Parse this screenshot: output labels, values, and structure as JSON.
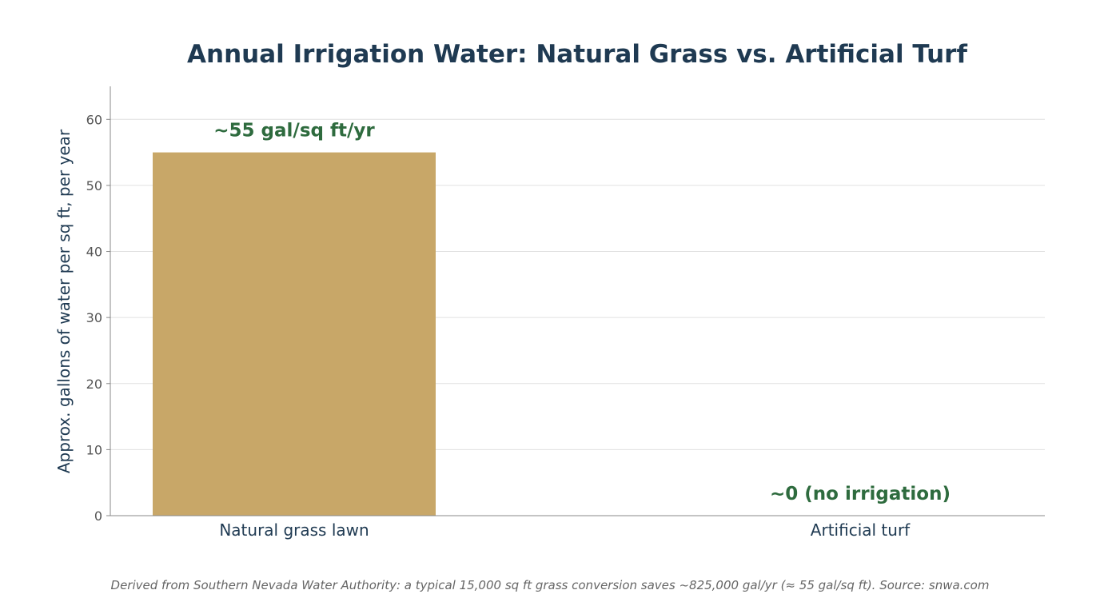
{
  "chart_data": {
    "type": "bar",
    "title": "Annual Irrigation Water: Natural Grass vs. Artificial Turf",
    "xlabel": "",
    "ylabel": "Approx. gallons of water per sq ft, per year",
    "ylim": [
      0,
      65
    ],
    "yticks": [
      0,
      10,
      20,
      30,
      40,
      50,
      60
    ],
    "grid": "horizontal",
    "categories": [
      "Natural grass lawn",
      "Artificial turf"
    ],
    "values": [
      55,
      0
    ],
    "data_labels": [
      "~55 gal/sq ft/yr",
      "~0 (no irrigation)"
    ],
    "bar_colors": [
      "#c8a768",
      "#c8a768"
    ],
    "label_color": "#2e6b3e",
    "footnote": "Derived from Southern Nevada Water Authority: a typical 15,000 sq ft grass conversion saves ~825,000 gal/yr (≈ 55 gal/sq ft). Source: snwa.com"
  }
}
